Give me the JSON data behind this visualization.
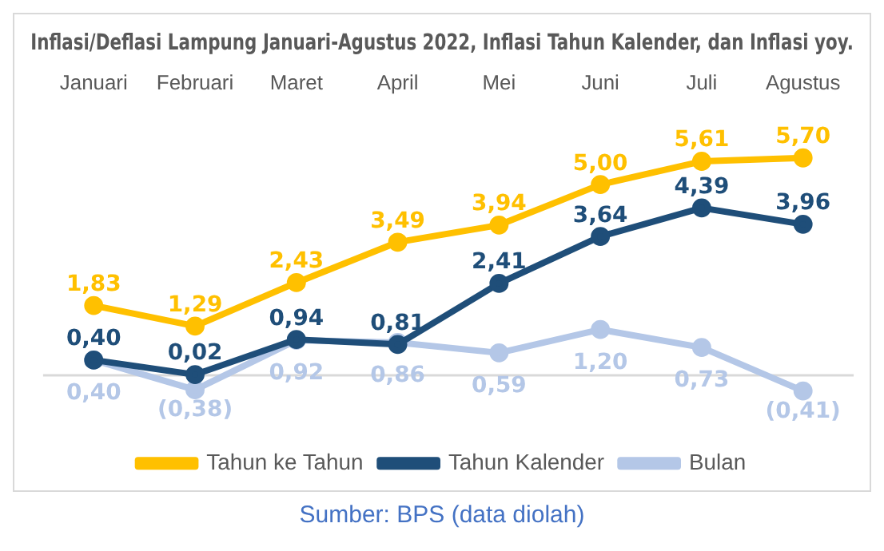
{
  "chart_data": {
    "type": "line",
    "title": "Inflasi/Deflasi Lampung Januari-Agustus 2022, Inflasi Tahun Kalender, dan Inflasi yoy.",
    "categories": [
      "Januari",
      "Februari",
      "Maret",
      "April",
      "Mei",
      "Juni",
      "Juli",
      "Agustus"
    ],
    "series": [
      {
        "name": "Bulan",
        "color": "#b4c7e7",
        "values": [
          0.4,
          -0.38,
          0.92,
          0.86,
          0.59,
          1.2,
          0.73,
          -0.41
        ],
        "value_labels": [
          "0,40",
          "(0,38)",
          "0,92",
          "0,86",
          "0,59",
          "1,20",
          "0,73",
          "(0,41)"
        ]
      },
      {
        "name": "Tahun Kalender",
        "color": "#1f4e79",
        "values": [
          0.4,
          0.02,
          0.94,
          0.81,
          2.41,
          3.64,
          4.39,
          3.96
        ],
        "value_labels": [
          "0,40",
          "0,02",
          "0,94",
          "0,81",
          "2,41",
          "3,64",
          "4,39",
          "3,96"
        ]
      },
      {
        "name": "Tahun ke Tahun",
        "color": "#ffc000",
        "values": [
          1.83,
          1.29,
          2.43,
          3.49,
          3.94,
          5.0,
          5.61,
          5.7
        ],
        "value_labels": [
          "1,83",
          "1,29",
          "2,43",
          "3,49",
          "3,94",
          "5,00",
          "5,61",
          "5,70"
        ]
      }
    ],
    "relative": false,
    "marker": "circle",
    "line_style": "solid",
    "legend": "bottom",
    "grid": false,
    "ref_lines": [
      {
        "axis": "y",
        "value": 0,
        "color": "#d9d9d9"
      }
    ],
    "annotations": [
      "Sumber: BPS (data diolah)"
    ]
  }
}
